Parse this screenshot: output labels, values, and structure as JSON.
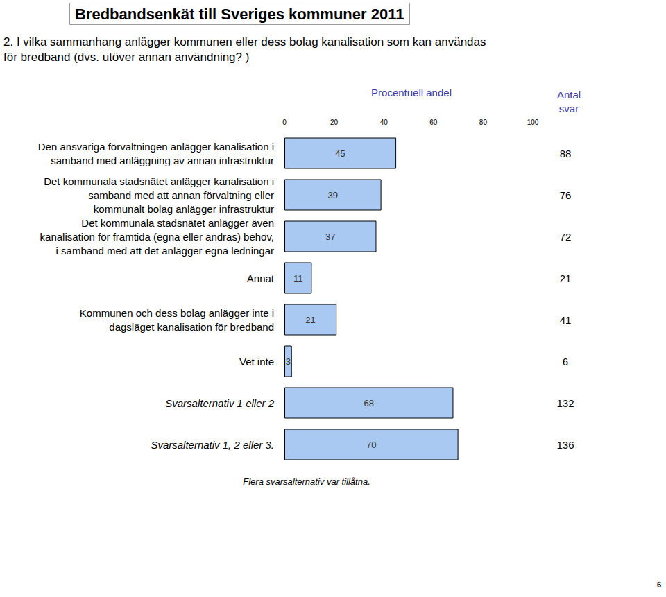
{
  "chart_data": {
    "type": "bar",
    "title": "Bredbandsenkät till Sveriges kommuner 2011",
    "subtitle": "2. I vilka sammanhang anlägger kommunen eller dess bolag kanalisation som kan användas\nför bredband (dvs. utöver annan användning? )",
    "x_label": "Procentuell andel",
    "counts_label": "Antal\nsvar",
    "note": "Flera svarsalternativ var tillåtna.",
    "page": 6,
    "orientation": "horizontal",
    "categories": [
      "Den ansvariga förvaltningen anlägger kanalisation i\nsamband med anläggning av annan infrastruktur",
      "Det kommunala stadsnätet anlägger kanalisation i\nsamband med att annan förvaltning eller\nkommunalt bolag anlägger infrastruktur",
      "Det kommunala stadsnätet anlägger även\nkanalisation för framtida (egna eller andras) behov,\ni samband med att det anlägger egna ledningar",
      "Annat",
      "Kommunen och dess bolag anlägger inte i\ndagsläget kanalisation för bredband",
      "Vet inte",
      "Svarsalternativ 1 eller 2",
      "Svarsalternativ 1, 2 eller 3."
    ],
    "values": [
      45,
      39,
      37,
      11,
      21,
      3,
      68,
      70
    ],
    "counts": [
      88,
      76,
      72,
      21,
      41,
      6,
      132,
      136
    ],
    "xlim": [
      0,
      100
    ],
    "xticks": [
      0,
      20,
      40,
      60,
      80,
      100
    ],
    "data_labels": true,
    "grid": false,
    "color": "#a9c9f2"
  }
}
